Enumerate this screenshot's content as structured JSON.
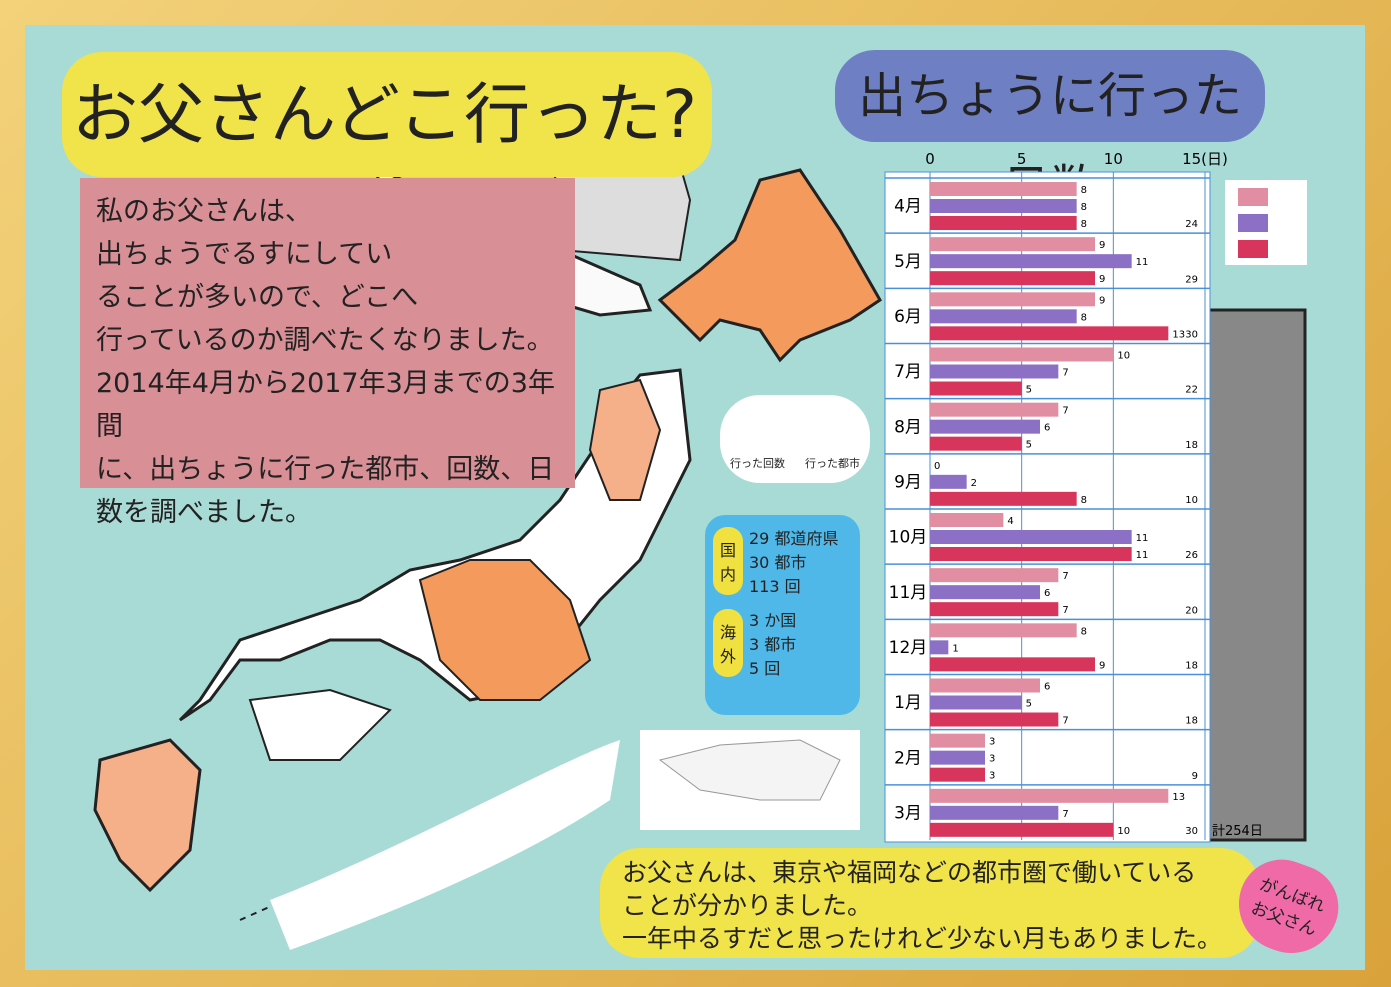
{
  "poster": {
    "title": "お父さんどこ行った?",
    "intro": [
      "私のお父さんは、",
      "出ちょうでるすにしてい",
      "ることが多いので、どこへ",
      "行っているのか調べたくなりました。",
      "2014年4月から2017年3月までの3年間",
      "に、出ちょうに行った都市、回数、日数を調べました。"
    ],
    "map_legend": [
      "行った回数",
      "行った都市"
    ],
    "summary": [
      {
        "label": "国内",
        "rows": [
          {
            "value": 29,
            "unit": "都道府県"
          },
          {
            "value": 30,
            "unit": "都市"
          },
          {
            "value": 113,
            "unit": "回"
          }
        ]
      },
      {
        "label": "海外",
        "rows": [
          {
            "value": 3,
            "unit": "か国"
          },
          {
            "value": 3,
            "unit": "都市"
          },
          {
            "value": 5,
            "unit": "回"
          }
        ]
      }
    ],
    "conclusion": [
      "お父さんは、東京や福岡などの都市圏で働いている",
      "ことが分かりました。",
      "一年中るすだと思ったけれど少ない月もありました。"
    ],
    "heart": [
      "がんばれ",
      "お父さん"
    ]
  },
  "chart_data": {
    "type": "barh",
    "title": "出ちょうに行った日数",
    "categories": [
      "4月",
      "5月",
      "6月",
      "7月",
      "8月",
      "9月",
      "10月",
      "11月",
      "12月",
      "1月",
      "2月",
      "3月"
    ],
    "series": [
      {
        "color": "#e28ea2",
        "values": [
          8,
          9,
          9,
          10,
          7,
          0,
          4,
          7,
          8,
          6,
          3,
          13
        ]
      },
      {
        "color": "#8c70c6",
        "values": [
          8,
          11,
          8,
          7,
          6,
          2,
          11,
          6,
          1,
          5,
          3,
          7
        ]
      },
      {
        "color": "#d8355c",
        "values": [
          8,
          9,
          13,
          5,
          5,
          8,
          11,
          7,
          9,
          7,
          3,
          10
        ]
      }
    ],
    "totals": [
      24,
      29,
      30,
      22,
      18,
      10,
      26,
      20,
      18,
      18,
      9,
      30
    ],
    "total_label": "計254日",
    "xlim": [
      0,
      15
    ],
    "xticks": [
      0,
      5,
      10,
      {
        "value": 15,
        "label": "15(日)"
      }
    ],
    "grid": true
  }
}
